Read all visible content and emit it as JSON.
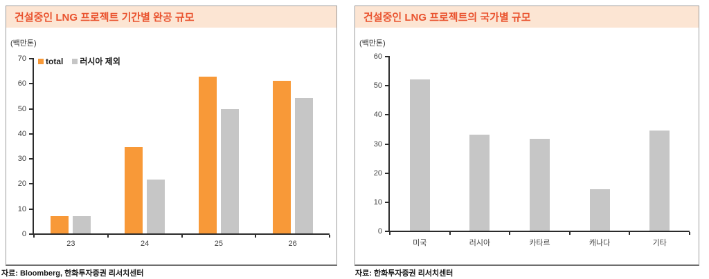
{
  "panels": [
    {
      "title": "건설중인 LNG 프로젝트 기간별 완공 규모",
      "unit_label": "(백만톤)",
      "source": "자료: Bloomberg, 한화투자증권 리서치센터"
    },
    {
      "title": "건설중인 LNG 프로젝트의 국가별 규모",
      "unit_label": "(백만톤)",
      "source": "자료: 한화투자증권 리서치센터"
    }
  ],
  "colors": {
    "accent_orange": "#F89938",
    "bar_gray": "#C6C6C6",
    "title_text": "#E9532F",
    "title_bar_bg": "#FCE5D3"
  },
  "chart_data": [
    {
      "type": "bar",
      "title": "건설중인 LNG 프로젝트 기간별 완공 규모",
      "unit": "(백만톤)",
      "categories": [
        "23",
        "24",
        "25",
        "26"
      ],
      "series": [
        {
          "name": "total",
          "color": "#F89938",
          "values": [
            7,
            34.5,
            62.5,
            61
          ]
        },
        {
          "name": "러시아 제외",
          "color": "#C6C6C6",
          "values": [
            7,
            21.5,
            49.5,
            54
          ]
        }
      ],
      "ylim": [
        0,
        70
      ],
      "ytick_step": 10,
      "grid": false,
      "legend_position": "top-left"
    },
    {
      "type": "bar",
      "title": "건설중인 LNG 프로젝트의 국가별 규모",
      "unit": "(백만톤)",
      "categories": [
        "미국",
        "러시아",
        "카타르",
        "캐나다",
        "기타"
      ],
      "series": [
        {
          "color": "#C6C6C6",
          "values": [
            52,
            33,
            31.5,
            14.3,
            34.5
          ]
        }
      ],
      "ylim": [
        0,
        60
      ],
      "ytick_step": 10,
      "grid": false,
      "legend_position": "none"
    }
  ]
}
